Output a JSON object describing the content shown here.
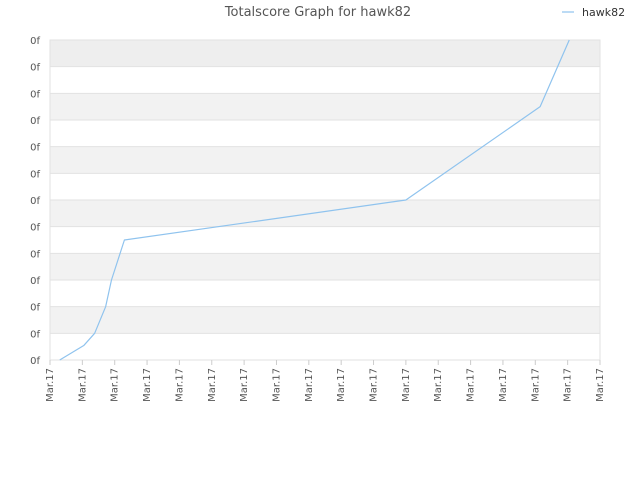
{
  "chart_data": {
    "type": "line",
    "title": "Totalscore Graph for hawk82",
    "xlabel": "",
    "ylabel": "",
    "x_tick_labels": [
      "Mar.17",
      "Mar.17",
      "Mar.17",
      "Mar.17",
      "Mar.17",
      "Mar.17",
      "Mar.17",
      "Mar.17",
      "Mar.17",
      "Mar.17",
      "Mar.17",
      "Mar.17",
      "Mar.17",
      "Mar.17",
      "Mar.17",
      "Mar.17",
      "Mar.17",
      "Mar.17"
    ],
    "y_tick_labels": [
      "0f",
      "0f",
      "0f",
      "0f",
      "0f",
      "0f",
      "0f",
      "0f",
      "0f",
      "0f",
      "0f",
      "0f",
      "0f"
    ],
    "xlim": [
      0,
      17
    ],
    "ylim": [
      0,
      12
    ],
    "grid": true,
    "legend_position": "top-right",
    "series": [
      {
        "name": "hawk82",
        "color": "#8fc3ee",
        "x": [
          0.3,
          1.05,
          1.38,
          1.72,
          1.9,
          2.3,
          11.0,
          15.15,
          16.05
        ],
        "y": [
          0,
          0.55,
          1.0,
          2.0,
          3.0,
          4.5,
          6.0,
          9.5,
          12.0
        ]
      }
    ]
  }
}
